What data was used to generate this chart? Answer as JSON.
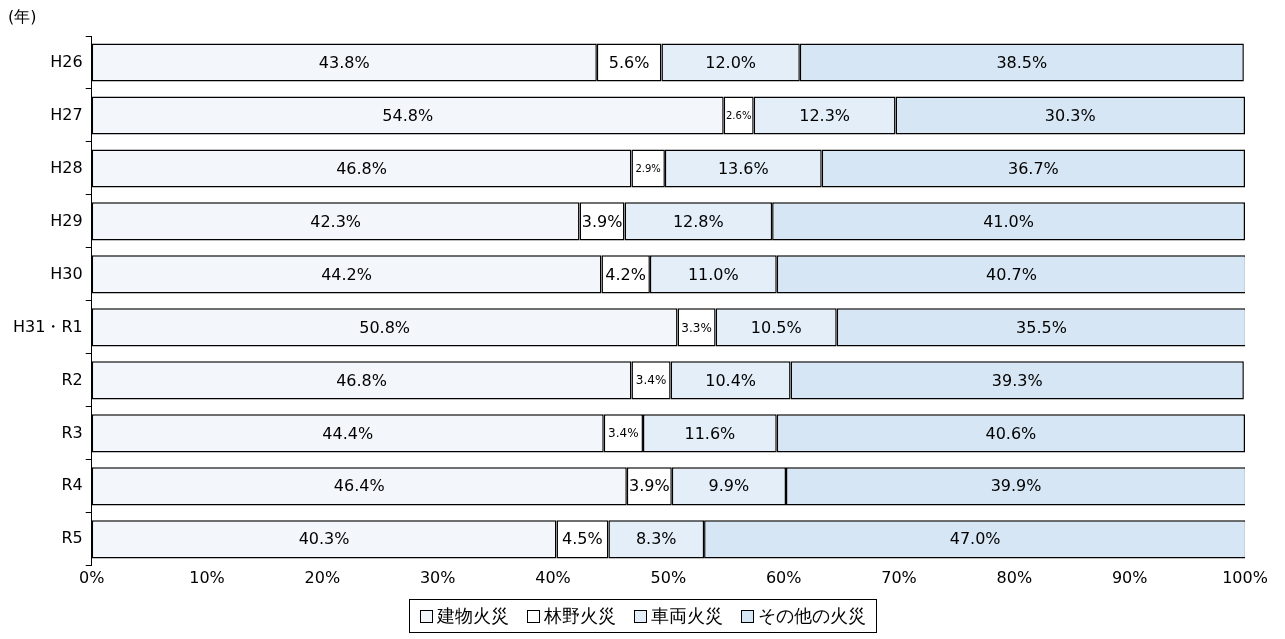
{
  "chart_data": {
    "type": "bar",
    "orientation": "horizontal",
    "stacked": true,
    "ylabel": "(年)",
    "categories": [
      "H26",
      "H27",
      "H28",
      "H29",
      "H30",
      "H31・R1",
      "R2",
      "R3",
      "R4",
      "R5"
    ],
    "series": [
      {
        "name": "建物火災",
        "color": "#f3f7fb",
        "values": [
          43.8,
          54.8,
          46.8,
          42.3,
          44.2,
          50.8,
          46.8,
          44.4,
          46.4,
          40.3
        ],
        "value_labels": [
          "43.8%",
          "54.8%",
          "46.8%",
          "42.3%",
          "44.2%",
          "50.8%",
          "46.8%",
          "44.4%",
          "46.4%",
          "40.3%"
        ]
      },
      {
        "name": "林野火災",
        "color": "#ffffff",
        "values": [
          5.6,
          2.6,
          2.9,
          3.9,
          4.2,
          3.3,
          3.4,
          3.4,
          3.9,
          4.5
        ],
        "value_labels": [
          "5.6%",
          "2.6%",
          "2.9%",
          "3.9%",
          "4.2%",
          "3.3%",
          "3.4%",
          "3.4%",
          "3.9%",
          "4.5%"
        ]
      },
      {
        "name": "車両火災",
        "color": "#e3eef8",
        "values": [
          12.0,
          12.3,
          13.6,
          12.8,
          11.0,
          10.5,
          10.4,
          11.6,
          9.9,
          8.3
        ],
        "value_labels": [
          "12.0%",
          "12.3%",
          "13.6%",
          "12.8%",
          "11.0%",
          "10.5%",
          "10.4%",
          "11.6%",
          "9.9%",
          "8.3%"
        ]
      },
      {
        "name": "その他の火災",
        "color": "#d6e6f4",
        "values": [
          38.5,
          30.3,
          36.7,
          41.0,
          40.7,
          35.5,
          39.3,
          40.6,
          39.9,
          47.0
        ],
        "value_labels": [
          "38.5%",
          "30.3%",
          "36.7%",
          "41.0%",
          "40.7%",
          "35.5%",
          "39.3%",
          "40.6%",
          "39.9%",
          "47.0%"
        ]
      }
    ],
    "xlim": [
      0,
      100
    ],
    "xticks": [
      {
        "value": 0,
        "label": "0%"
      },
      {
        "value": 10,
        "label": "10%"
      },
      {
        "value": 20,
        "label": "20%"
      },
      {
        "value": 30,
        "label": "30%"
      },
      {
        "value": 40,
        "label": "40%"
      },
      {
        "value": 50,
        "label": "50%"
      },
      {
        "value": 60,
        "label": "60%"
      },
      {
        "value": 70,
        "label": "70%"
      },
      {
        "value": 80,
        "label": "80%"
      },
      {
        "value": 90,
        "label": "90%"
      },
      {
        "value": 100,
        "label": "100%"
      }
    ],
    "grid": false,
    "legend": "bottom"
  }
}
